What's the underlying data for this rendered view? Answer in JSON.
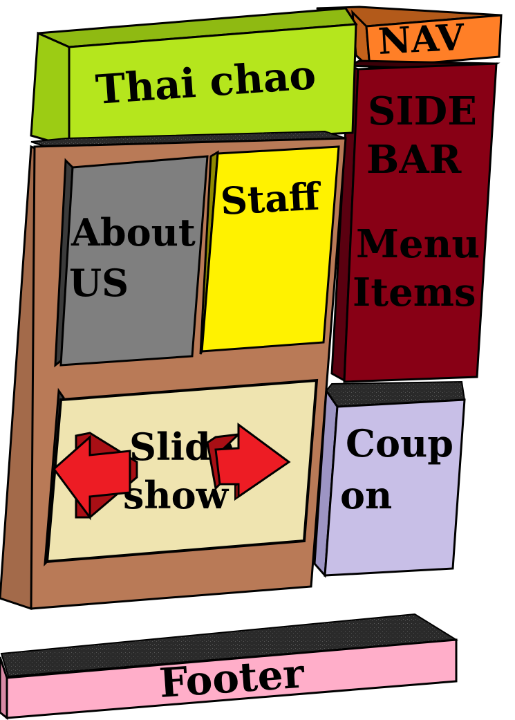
{
  "blocks": {
    "header": {
      "label": "Thai chao",
      "color": "#b5e61d"
    },
    "nav": {
      "label": "NAV",
      "color": "#ff7f27"
    },
    "sidebar": {
      "lines": [
        "SIDE",
        "BAR",
        "Menu",
        "Items"
      ],
      "color": "#880015"
    },
    "main": {
      "color": "#b97a57"
    },
    "about": {
      "lines": [
        "About",
        "US"
      ],
      "color": "#7f7f7f"
    },
    "staff": {
      "label": "Staff",
      "color": "#fff200"
    },
    "slideshow": {
      "lines": [
        "Slide",
        "show"
      ],
      "color": "#efe4b0",
      "arrow_color": "#ed1c24"
    },
    "coupon": {
      "lines": [
        "Coup",
        "on"
      ],
      "color": "#c8bfe7"
    },
    "footer": {
      "label": "Footer",
      "color": "#ffaec9"
    }
  }
}
